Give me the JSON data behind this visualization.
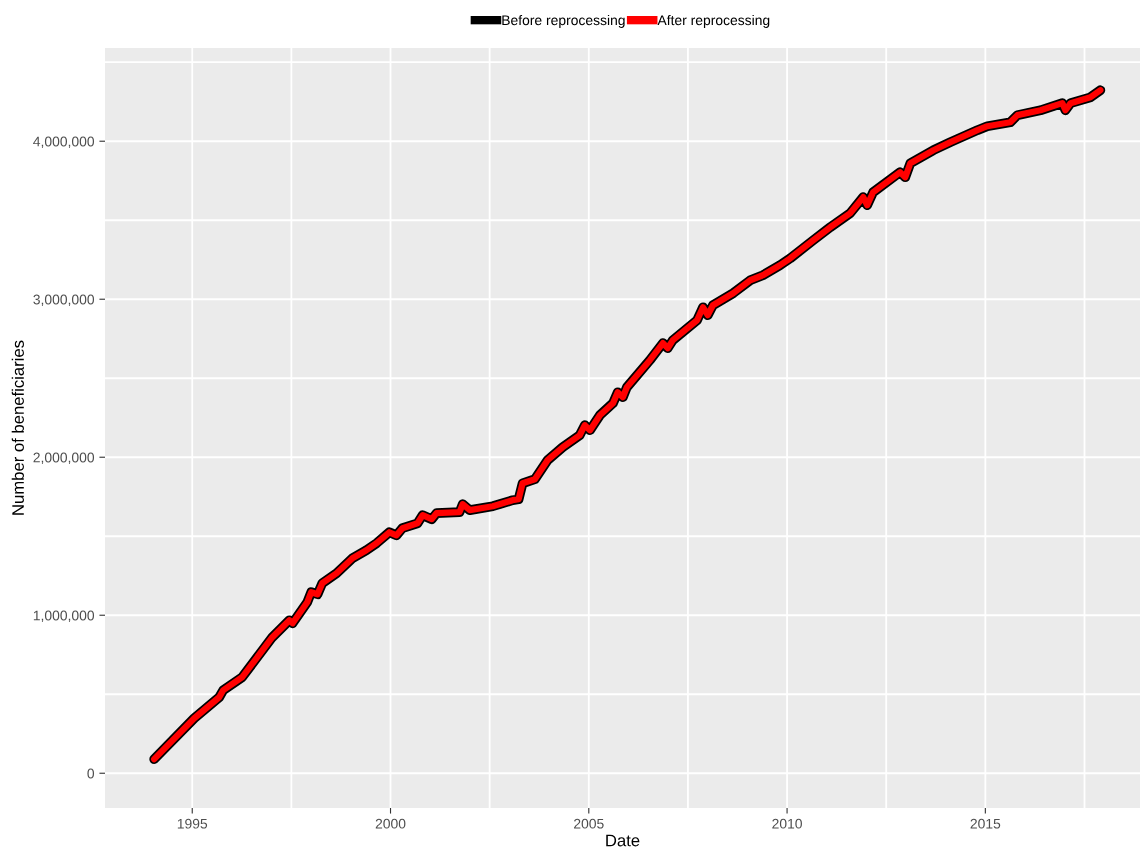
{
  "chart_data": {
    "type": "line",
    "xlabel": "Date",
    "ylabel": "Number of beneficiaries",
    "x": [
      1994.04,
      1995.05,
      1995.68,
      1995.78,
      1996.26,
      1997.02,
      1997.45,
      1997.53,
      1997.9,
      1998.0,
      1998.16,
      1998.28,
      1998.64,
      1999.04,
      1999.39,
      1999.65,
      1999.97,
      2000.15,
      2000.3,
      2000.68,
      2000.81,
      2001.04,
      2001.16,
      2001.74,
      2001.82,
      2002.0,
      2002.58,
      2003.08,
      2003.23,
      2003.33,
      2003.64,
      2003.96,
      2004.34,
      2004.77,
      2004.9,
      2005.03,
      2005.28,
      2005.61,
      2005.73,
      2005.86,
      2005.96,
      2006.11,
      2006.54,
      2006.87,
      2006.99,
      2007.12,
      2007.73,
      2007.88,
      2008.0,
      2008.13,
      2008.64,
      2009.07,
      2009.39,
      2009.82,
      2010.08,
      2010.66,
      2011.09,
      2011.59,
      2011.92,
      2012.02,
      2012.17,
      2012.85,
      2012.98,
      2013.11,
      2013.69,
      2014.12,
      2014.8,
      2015.05,
      2015.63,
      2015.81,
      2016.39,
      2016.94,
      2017.02,
      2017.15,
      2017.65,
      2017.9
    ],
    "series": [
      {
        "name": "Before reprocessing",
        "color": "#000000",
        "values": [
          89000,
          348000,
          481000,
          525000,
          608000,
          861000,
          968000,
          949000,
          1082000,
          1146000,
          1133000,
          1203000,
          1266000,
          1361000,
          1411000,
          1456000,
          1525000,
          1506000,
          1551000,
          1582000,
          1633000,
          1608000,
          1646000,
          1652000,
          1703000,
          1665000,
          1690000,
          1728000,
          1734000,
          1835000,
          1861000,
          1981000,
          2063000,
          2139000,
          2203000,
          2171000,
          2266000,
          2342000,
          2411000,
          2380000,
          2443000,
          2487000,
          2614000,
          2722000,
          2690000,
          2741000,
          2867000,
          2949000,
          2899000,
          2962000,
          3038000,
          3120000,
          3152000,
          3215000,
          3259000,
          3373000,
          3456000,
          3544000,
          3646000,
          3595000,
          3677000,
          3804000,
          3772000,
          3861000,
          3943000,
          3994000,
          4070000,
          4095000,
          4120000,
          4165000,
          4196000,
          4241000,
          4196000,
          4241000,
          4278000,
          4323000
        ]
      },
      {
        "name": "After reprocessing",
        "color": "#ff0000",
        "values": [
          89000,
          348000,
          481000,
          525000,
          608000,
          861000,
          968000,
          949000,
          1082000,
          1146000,
          1133000,
          1203000,
          1266000,
          1361000,
          1411000,
          1456000,
          1525000,
          1506000,
          1551000,
          1582000,
          1633000,
          1608000,
          1646000,
          1652000,
          1703000,
          1665000,
          1690000,
          1728000,
          1734000,
          1835000,
          1861000,
          1981000,
          2063000,
          2139000,
          2203000,
          2171000,
          2266000,
          2342000,
          2411000,
          2380000,
          2443000,
          2487000,
          2614000,
          2722000,
          2690000,
          2741000,
          2867000,
          2949000,
          2899000,
          2962000,
          3038000,
          3120000,
          3152000,
          3215000,
          3259000,
          3373000,
          3456000,
          3544000,
          3646000,
          3595000,
          3677000,
          3804000,
          3772000,
          3861000,
          3943000,
          3994000,
          4070000,
          4095000,
          4120000,
          4165000,
          4196000,
          4241000,
          4196000,
          4241000,
          4278000,
          4323000
        ]
      }
    ],
    "xlim": [
      1992.8,
      2018.9
    ],
    "xticks": [
      1995,
      {
        "value": 1997.5,
        "label": null
      },
      2000,
      {
        "value": 2002.5,
        "label": null
      },
      2005,
      {
        "value": 2007.5,
        "label": null
      },
      2010,
      {
        "value": 2012.5,
        "label": null
      },
      2015,
      {
        "value": 2017.5,
        "label": null
      }
    ],
    "ylim": [
      -220000,
      4590000
    ],
    "yticks": [
      {
        "value": 0,
        "label": "0"
      },
      {
        "value": 500000,
        "label": null
      },
      {
        "value": 1000000,
        "label": "1,000,000"
      },
      {
        "value": 1500000,
        "label": null
      },
      {
        "value": 2000000,
        "label": "2,000,000"
      },
      {
        "value": 2500000,
        "label": null
      },
      {
        "value": 3000000,
        "label": "3,000,000"
      },
      {
        "value": 3500000,
        "label": null
      },
      {
        "value": 4000000,
        "label": "4,000,000"
      },
      {
        "value": 4500000,
        "label": null
      }
    ],
    "grid": true,
    "legend": "top",
    "marker": "none",
    "line_style": "solid"
  }
}
